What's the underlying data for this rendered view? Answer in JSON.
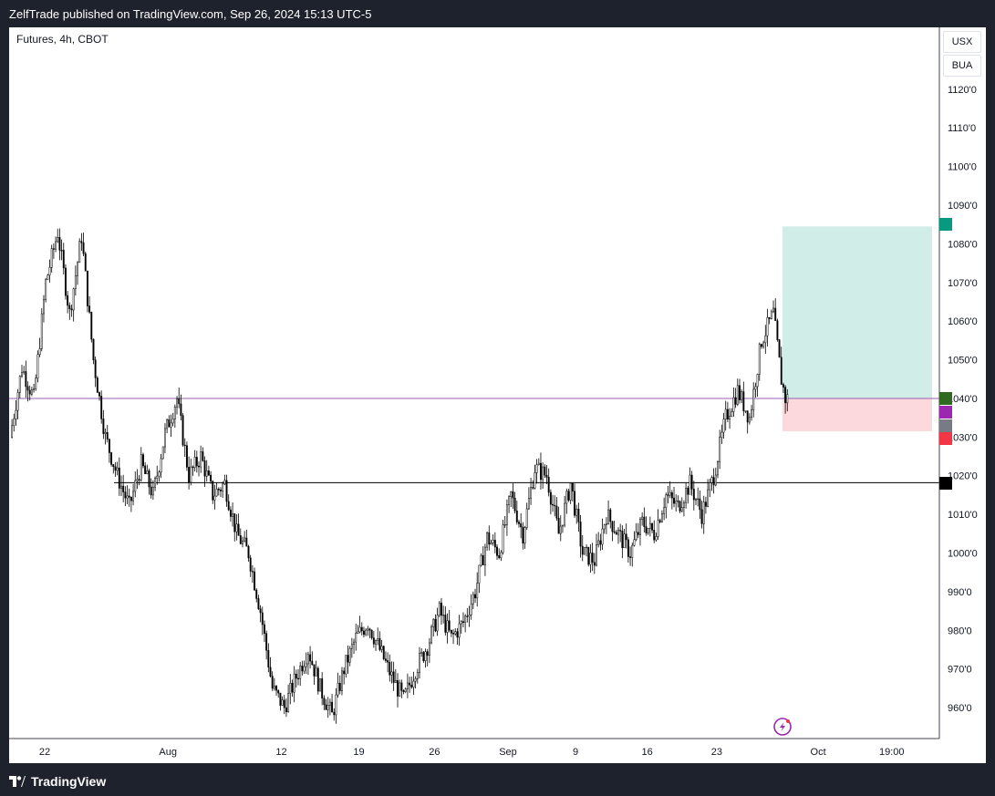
{
  "header": {
    "published_text": "ZelfTrade published on TradingView.com, Sep 26, 2024 15:13 UTC-5"
  },
  "footer": {
    "brand": "TradingView",
    "logo_icon": "tradingview-logo-icon"
  },
  "legend": {
    "text": "Futures, 4h, CBOT"
  },
  "buttons": {
    "usx": "USX",
    "bua": "BUA"
  },
  "lightning_icon": "lightning-icon",
  "colors": {
    "tp_zone": "#d0ede8",
    "sl_zone": "#fbd9dd",
    "tag_green": "#089981",
    "tag_darkgreen": "#2f6a20",
    "tag_purple": "#9c27b0",
    "tag_gray": "#787b86",
    "tag_red": "#f23645",
    "tag_black": "#000000",
    "hline_purple": "#9c5fb5"
  },
  "chart_data": {
    "type": "candlestick",
    "title": "Futures, 4h, CBOT",
    "x_tick_labels": [
      "22",
      "Aug",
      "12",
      "19",
      "26",
      "Sep",
      "9",
      "16",
      "23",
      "Oct",
      "19:00"
    ],
    "y_tick_labels": [
      "960'0",
      "970'0",
      "980'0",
      "990'0",
      "1000'0",
      "1010'0",
      "1020'0",
      "1030'0",
      "1040'0",
      "1050'0",
      "1060'0",
      "1070'0",
      "1080'0",
      "1090'0",
      "1100'0",
      "1110'0",
      "1120'0"
    ],
    "ylim": [
      952,
      1136
    ],
    "y_ticks": [
      960,
      970,
      980,
      990,
      1000,
      1010,
      1020,
      1030,
      1040,
      1050,
      1060,
      1070,
      1080,
      1090,
      1100,
      1110,
      1120
    ],
    "anchors": [
      [
        0,
        1030
      ],
      [
        6,
        1048
      ],
      [
        12,
        1040
      ],
      [
        18,
        1070
      ],
      [
        24,
        1083
      ],
      [
        30,
        1062
      ],
      [
        36,
        1082
      ],
      [
        42,
        1050
      ],
      [
        48,
        1030
      ],
      [
        54,
        1020
      ],
      [
        60,
        1012
      ],
      [
        66,
        1023
      ],
      [
        72,
        1015
      ],
      [
        78,
        1031
      ],
      [
        84,
        1040
      ],
      [
        90,
        1020
      ],
      [
        96,
        1025
      ],
      [
        102,
        1015
      ],
      [
        108,
        1018
      ],
      [
        114,
        1005
      ],
      [
        120,
        1000
      ],
      [
        126,
        985
      ],
      [
        132,
        965
      ],
      [
        138,
        960
      ],
      [
        144,
        968
      ],
      [
        150,
        975
      ],
      [
        156,
        965
      ],
      [
        162,
        958
      ],
      [
        168,
        970
      ],
      [
        174,
        978
      ],
      [
        180,
        982
      ],
      [
        186,
        975
      ],
      [
        192,
        968
      ],
      [
        198,
        962
      ],
      [
        204,
        970
      ],
      [
        210,
        976
      ],
      [
        216,
        985
      ],
      [
        222,
        978
      ],
      [
        228,
        982
      ],
      [
        234,
        990
      ],
      [
        240,
        1004
      ],
      [
        246,
        1000
      ],
      [
        252,
        1015
      ],
      [
        258,
        1005
      ],
      [
        264,
        1022
      ],
      [
        270,
        1020
      ],
      [
        276,
        1005
      ],
      [
        282,
        1018
      ],
      [
        288,
        1000
      ],
      [
        294,
        998
      ],
      [
        300,
        1010
      ],
      [
        306,
        1005
      ],
      [
        312,
        1000
      ],
      [
        318,
        1008
      ],
      [
        324,
        1005
      ],
      [
        330,
        1015
      ],
      [
        336,
        1012
      ],
      [
        342,
        1018
      ],
      [
        348,
        1010
      ],
      [
        354,
        1020
      ],
      [
        360,
        1035
      ],
      [
        366,
        1042
      ],
      [
        372,
        1035
      ],
      [
        378,
        1055
      ],
      [
        384,
        1062
      ],
      [
        388,
        1045
      ],
      [
        390,
        1040
      ]
    ],
    "n_bars": 391,
    "position": {
      "entry": 1040,
      "take_profit": 1084.5,
      "stop_loss": 1031.5
    },
    "support_line": 1018.2,
    "current_price": 1040
  }
}
